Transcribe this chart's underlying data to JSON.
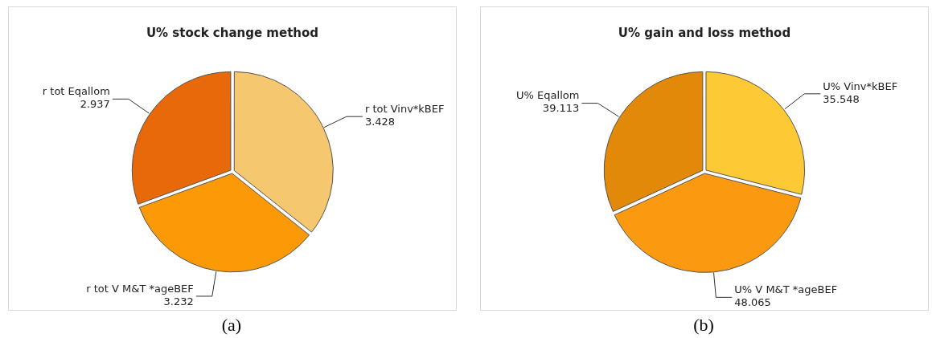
{
  "chart_data": [
    {
      "type": "pie",
      "title": "U% stock change method",
      "categories": [
        "r tot Vinv*kBEF",
        "r tot V M&T *ageBEF",
        "r tot Eqallom"
      ],
      "values": [
        3.428,
        3.232,
        2.937
      ],
      "colors": [
        "#f5c76e",
        "#fb9a06",
        "#e8690a"
      ],
      "data_labels": true,
      "annotations": [
        "(a)"
      ]
    },
    {
      "type": "pie",
      "title": "U% gain and loss method",
      "categories": [
        "U% Vinv*kBEF",
        "U% V M&T *ageBEF",
        "U% Eqallom"
      ],
      "values": [
        35.548,
        48.065,
        39.113
      ],
      "colors": [
        "#fdc934",
        "#fb9a10",
        "#e3890a"
      ],
      "data_labels": true,
      "annotations": [
        "(b)"
      ]
    }
  ]
}
